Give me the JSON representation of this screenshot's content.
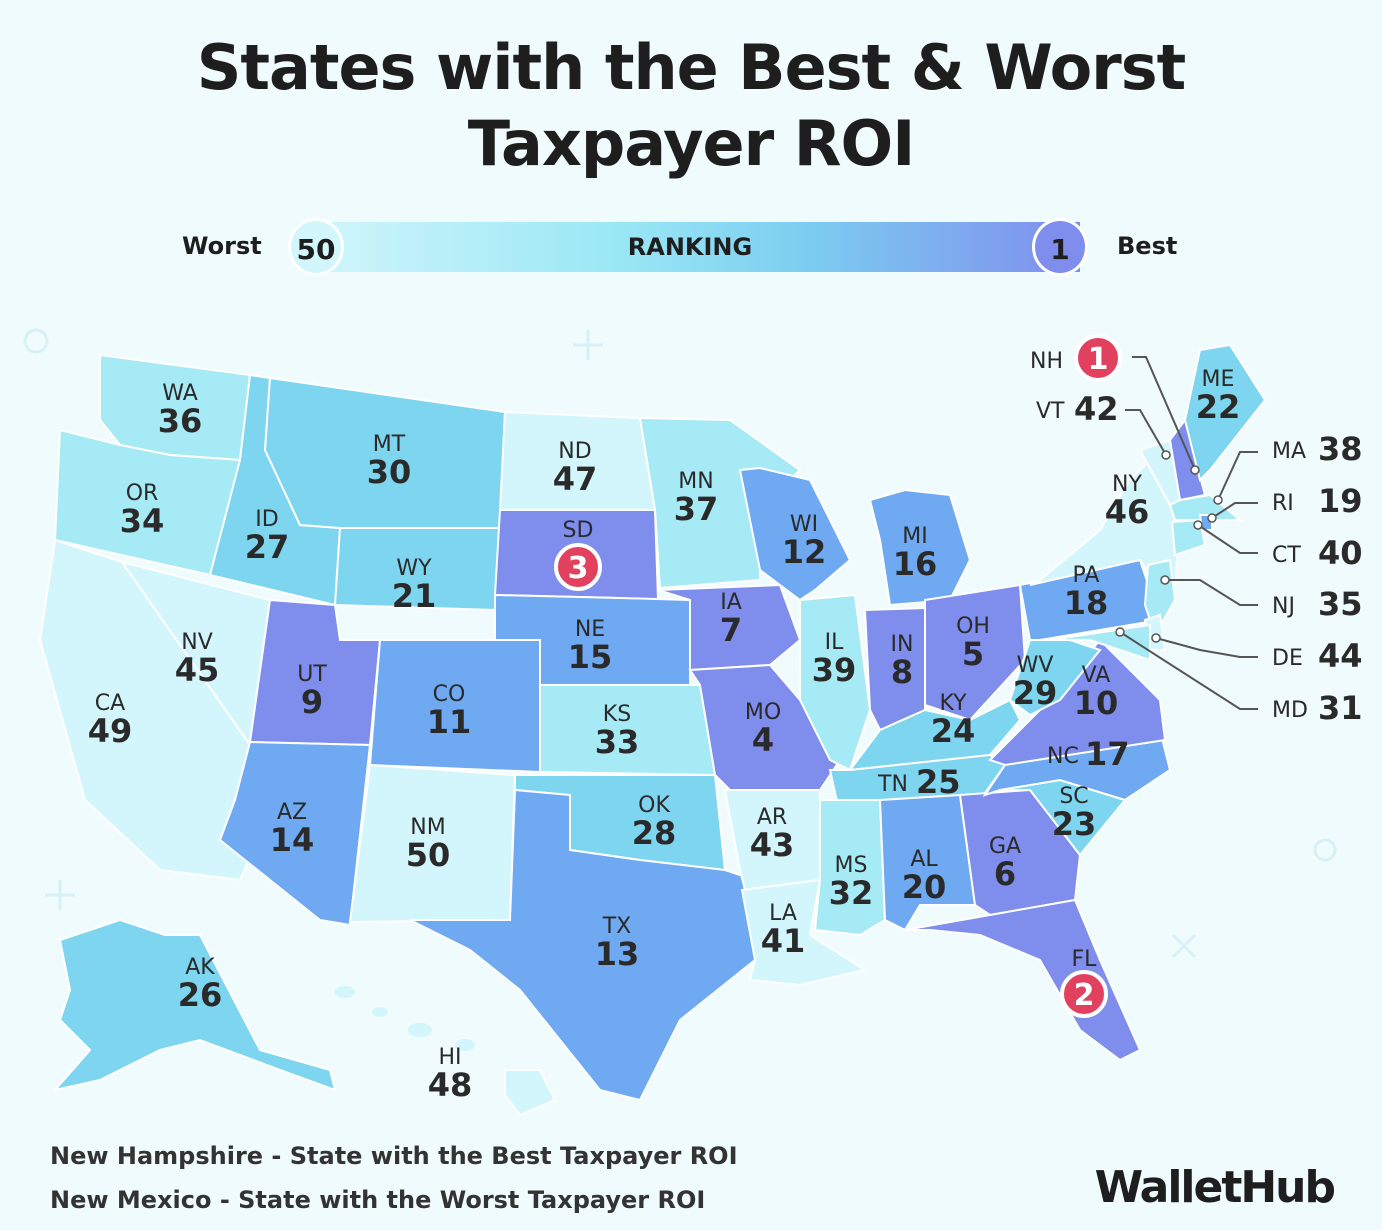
{
  "title_line1": "States with the Best & Worst",
  "title_line2": "Taxpayer ROI",
  "legend": {
    "worst_label": "Worst",
    "worst_value": "50",
    "ranking_label": "RANKING",
    "best_value": "1",
    "best_label": "Best"
  },
  "colors": {
    "1-10": "#7f8ded",
    "11-20": "#6ea9f2",
    "21-30": "#7dd5ef",
    "31-40": "#a6eaf5",
    "41-50": "#d3f6fc",
    "highlight": "#e2405f",
    "background": "#f0fbfe"
  },
  "states": [
    {
      "abbr": "WA",
      "rank": 36
    },
    {
      "abbr": "OR",
      "rank": 34
    },
    {
      "abbr": "CA",
      "rank": 49
    },
    {
      "abbr": "NV",
      "rank": 45
    },
    {
      "abbr": "ID",
      "rank": 27
    },
    {
      "abbr": "MT",
      "rank": 30
    },
    {
      "abbr": "WY",
      "rank": 21
    },
    {
      "abbr": "UT",
      "rank": 9
    },
    {
      "abbr": "CO",
      "rank": 11
    },
    {
      "abbr": "AZ",
      "rank": 14
    },
    {
      "abbr": "NM",
      "rank": 50
    },
    {
      "abbr": "ND",
      "rank": 47
    },
    {
      "abbr": "SD",
      "rank": 3
    },
    {
      "abbr": "NE",
      "rank": 15
    },
    {
      "abbr": "KS",
      "rank": 33
    },
    {
      "abbr": "OK",
      "rank": 28
    },
    {
      "abbr": "TX",
      "rank": 13
    },
    {
      "abbr": "MN",
      "rank": 37
    },
    {
      "abbr": "IA",
      "rank": 7
    },
    {
      "abbr": "MO",
      "rank": 4
    },
    {
      "abbr": "AR",
      "rank": 43
    },
    {
      "abbr": "LA",
      "rank": 41
    },
    {
      "abbr": "WI",
      "rank": 12
    },
    {
      "abbr": "IL",
      "rank": 39
    },
    {
      "abbr": "MI",
      "rank": 16
    },
    {
      "abbr": "IN",
      "rank": 8
    },
    {
      "abbr": "OH",
      "rank": 5
    },
    {
      "abbr": "KY",
      "rank": 24
    },
    {
      "abbr": "TN",
      "rank": 25
    },
    {
      "abbr": "MS",
      "rank": 32
    },
    {
      "abbr": "AL",
      "rank": 20
    },
    {
      "abbr": "GA",
      "rank": 6
    },
    {
      "abbr": "FL",
      "rank": 2
    },
    {
      "abbr": "SC",
      "rank": 23
    },
    {
      "abbr": "NC",
      "rank": 17
    },
    {
      "abbr": "VA",
      "rank": 10
    },
    {
      "abbr": "WV",
      "rank": 29
    },
    {
      "abbr": "PA",
      "rank": 18
    },
    {
      "abbr": "NY",
      "rank": 46
    },
    {
      "abbr": "VT",
      "rank": 42
    },
    {
      "abbr": "NH",
      "rank": 1
    },
    {
      "abbr": "ME",
      "rank": 22
    },
    {
      "abbr": "MA",
      "rank": 38
    },
    {
      "abbr": "RI",
      "rank": 19
    },
    {
      "abbr": "CT",
      "rank": 40
    },
    {
      "abbr": "NJ",
      "rank": 35
    },
    {
      "abbr": "DE",
      "rank": 44
    },
    {
      "abbr": "MD",
      "rank": 31
    },
    {
      "abbr": "AK",
      "rank": 26
    },
    {
      "abbr": "HI",
      "rank": 48
    }
  ],
  "footnotes": [
    "New Hampshire - State with the Best Taxpayer ROI",
    "New Mexico - State with the Worst Taxpayer ROI"
  ],
  "logo": "WalletHub"
}
